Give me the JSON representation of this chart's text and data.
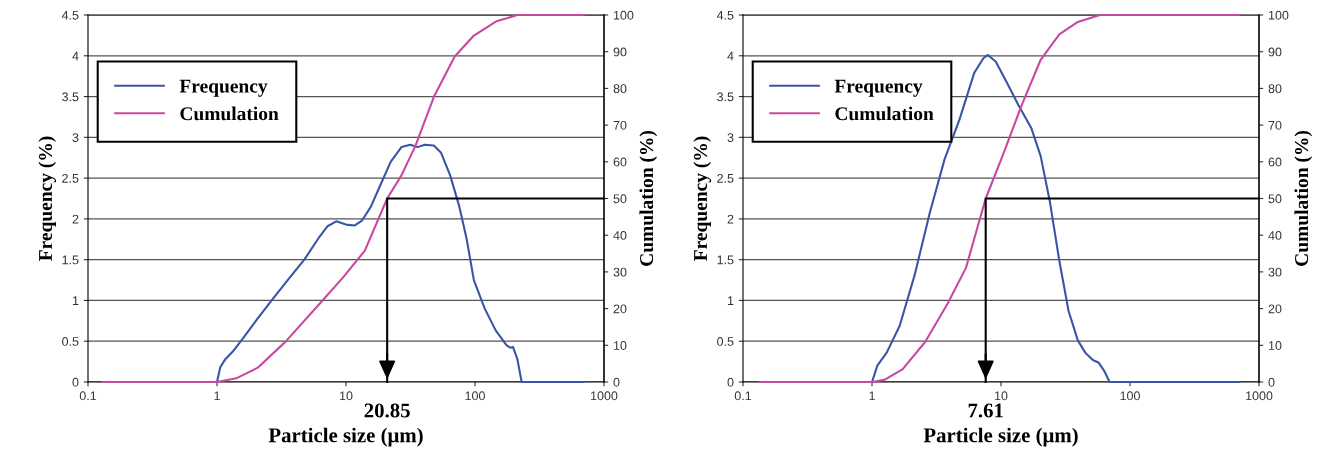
{
  "chart_data": [
    {
      "type": "line",
      "xlabel": "Particle size (μm)",
      "ylabel": "Frequency (%)",
      "y2label": "Cumulation (%)",
      "xlim": [
        0.1,
        1000
      ],
      "xticks": [
        0.1,
        1,
        10,
        100,
        1000
      ],
      "ylim": [
        0,
        4.5
      ],
      "yticks": [
        0,
        0.5,
        1,
        1.5,
        2,
        2.5,
        3,
        3.5,
        4,
        4.5
      ],
      "y2lim": [
        0,
        100
      ],
      "y2ticks": [
        0,
        10,
        20,
        30,
        40,
        50,
        60,
        70,
        80,
        90,
        100
      ],
      "log": "x",
      "grid": "y",
      "legend": "top left",
      "line_style": "solid",
      "annotations": [
        {
          "text": "20.85",
          "x": 20.85,
          "y": 0
        }
      ],
      "series": [
        {
          "name": "Frequency",
          "color": "#3a54a8",
          "x": [
            0.13,
            1,
            1.06,
            1.16,
            1.32,
            1.6,
            2.07,
            2.68,
            3.7,
            4.75,
            6.1,
            7.2,
            8.4,
            10,
            11.7,
            13.3,
            15.6,
            18.3,
            22.2,
            26.9,
            31.5,
            35.9,
            40.8,
            48,
            54.6,
            64.3,
            75.6,
            86,
            98,
            119,
            145,
            176,
            188,
            197,
            213,
            230,
            698
          ],
          "values": [
            0,
            0,
            0.18,
            0.28,
            0.37,
            0.54,
            0.78,
            1.01,
            1.29,
            1.5,
            1.76,
            1.91,
            1.97,
            1.93,
            1.92,
            1.98,
            2.15,
            2.4,
            2.7,
            2.88,
            2.91,
            2.88,
            2.91,
            2.9,
            2.81,
            2.53,
            2.15,
            1.76,
            1.25,
            0.9,
            0.63,
            0.45,
            0.42,
            0.43,
            0.28,
            0,
            0
          ]
        },
        {
          "name": "Cumulation",
          "color": "#c9489f",
          "axis": "y2",
          "x": [
            0.13,
            1,
            1.41,
            2.07,
            3.4,
            6.5,
            9.6,
            14,
            20.85,
            26.9,
            34.6,
            48,
            69.6,
            98,
            145,
            213,
            698
          ],
          "values": [
            0,
            0,
            1,
            3.9,
            11,
            22,
            28.7,
            35.8,
            50,
            56.3,
            64.4,
            77.7,
            88.7,
            94.4,
            98.2,
            100,
            100
          ]
        },
        {
          "color": "#000000",
          "axis": "y2",
          "x": [
            1000,
            20.85,
            20.85
          ],
          "values": [
            50,
            50,
            0
          ]
        }
      ]
    },
    {
      "type": "line",
      "xlabel": "Particle size (μm)",
      "ylabel": "Frequency (%)",
      "y2label": "Cumulation (%)",
      "xlim": [
        0.1,
        1000
      ],
      "xticks": [
        0.1,
        1,
        10,
        100,
        1000
      ],
      "ylim": [
        0,
        4.5
      ],
      "yticks": [
        0,
        0.5,
        1,
        1.5,
        2,
        2.5,
        3,
        3.5,
        4,
        4.5
      ],
      "y2lim": [
        0,
        100
      ],
      "y2ticks": [
        0,
        10,
        20,
        30,
        40,
        50,
        60,
        70,
        80,
        90,
        100
      ],
      "log": "x",
      "grid": "y",
      "legend": "top left",
      "line_style": "solid",
      "annotations": [
        {
          "text": "7.61",
          "x": 7.61,
          "y": 0
        }
      ],
      "series": [
        {
          "name": "Frequency",
          "color": "#3a54a8",
          "x": [
            0.135,
            1,
            1.1,
            1.3,
            1.64,
            2.14,
            2.8,
            3.65,
            4.77,
            6.2,
            7.3,
            7.9,
            9.1,
            11.2,
            13.6,
            17.2,
            20.3,
            24,
            28.3,
            33.4,
            39.4,
            45,
            51.5,
            56.9,
            62.9,
            69.5,
            703
          ],
          "values": [
            0,
            0,
            0.2,
            0.36,
            0.69,
            1.31,
            2.07,
            2.73,
            3.22,
            3.79,
            3.97,
            4.01,
            3.93,
            3.66,
            3.4,
            3.11,
            2.77,
            2.2,
            1.49,
            0.87,
            0.51,
            0.36,
            0.27,
            0.24,
            0.14,
            0,
            0
          ]
        },
        {
          "name": "Cumulation",
          "color": "#c9489f",
          "axis": "y2",
          "x": [
            0.135,
            1,
            1.25,
            1.73,
            2.58,
            3.85,
            5.35,
            7.61,
            10.3,
            14.5,
            20.3,
            28.3,
            39.4,
            58.5,
            703
          ],
          "values": [
            0,
            0,
            0.6,
            3.5,
            10.9,
            21.3,
            31.1,
            50,
            61.7,
            75.5,
            87.8,
            94.7,
            98.1,
            100,
            100
          ]
        },
        {
          "color": "#000000",
          "axis": "y2",
          "x": [
            1000,
            7.61,
            7.61
          ],
          "values": [
            50,
            50,
            0
          ]
        }
      ]
    }
  ]
}
